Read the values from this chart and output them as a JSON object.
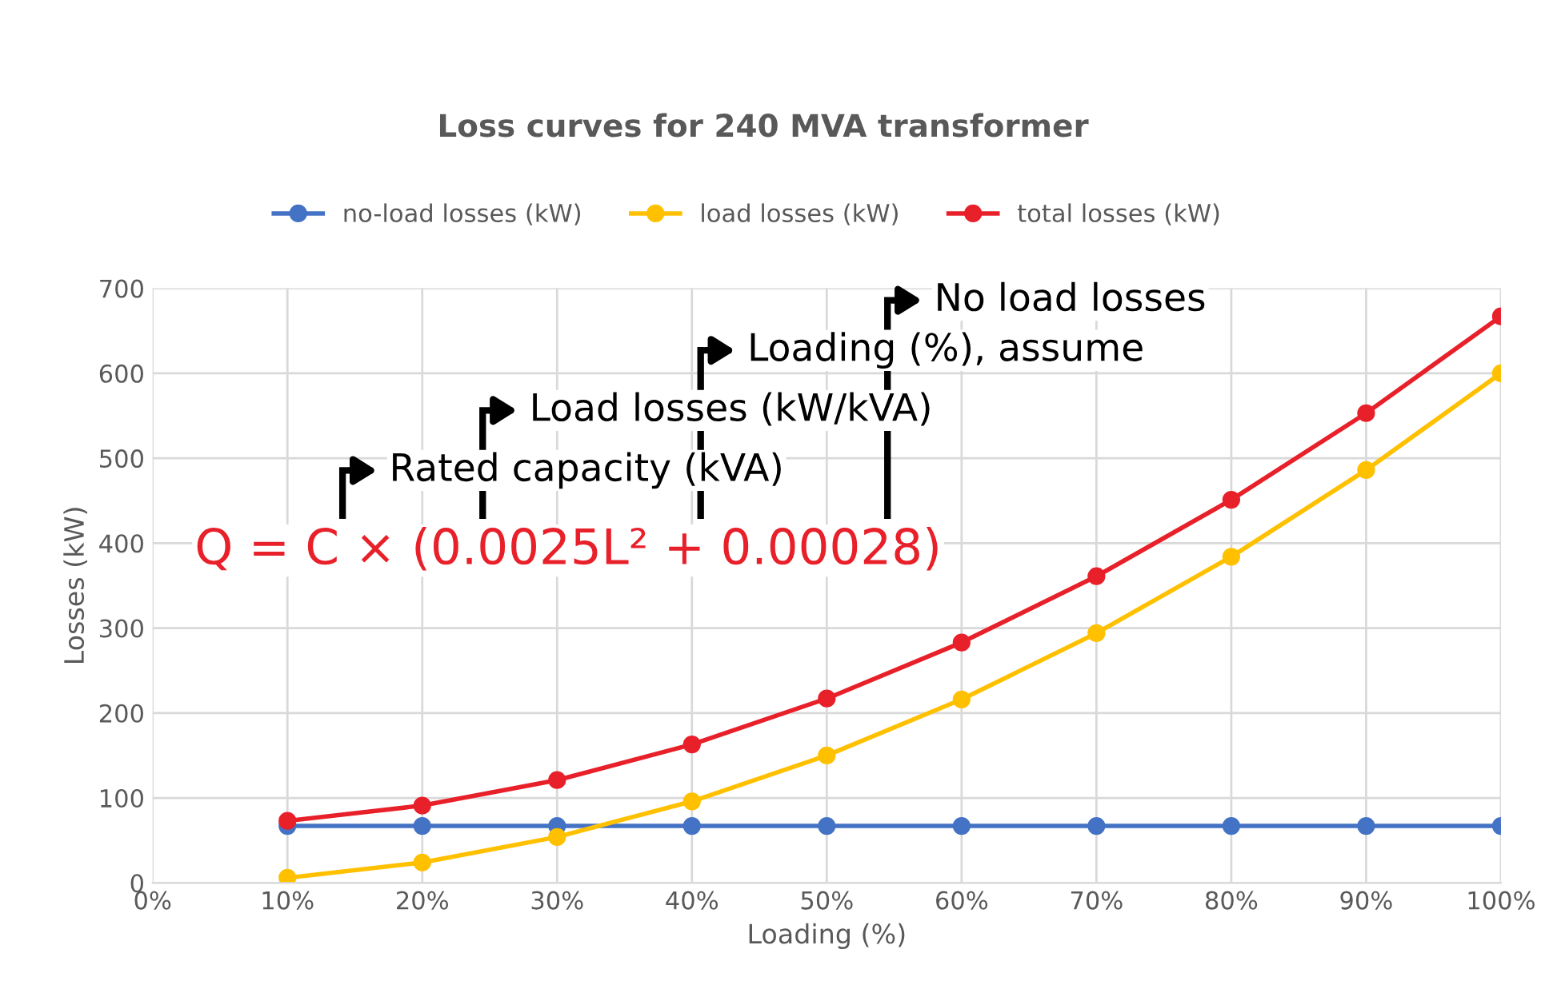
{
  "chart_data": {
    "type": "line",
    "title": "Loss curves for 240 MVA transformer",
    "xlabel": "Loading (%)",
    "ylabel": "Losses (kW)",
    "x": [
      10,
      20,
      30,
      40,
      50,
      60,
      70,
      80,
      90,
      100
    ],
    "series": [
      {
        "name": "no-load losses (kW)",
        "color": "#4472c4",
        "values": [
          67,
          67,
          67,
          67,
          67,
          67,
          67,
          67,
          67,
          67
        ]
      },
      {
        "name": "load losses (kW)",
        "color": "#ffc000",
        "values": [
          6,
          24,
          54,
          96,
          150,
          216,
          294,
          384,
          486,
          600
        ]
      },
      {
        "name": "total losses (kW)",
        "color": "#e8202a",
        "values": [
          73,
          91,
          121,
          163,
          217,
          283,
          361,
          451,
          553,
          667
        ]
      }
    ],
    "xlim": [
      0,
      100
    ],
    "xticks": [
      {
        "value": 0,
        "label": "0%"
      },
      {
        "value": 10,
        "label": "10%"
      },
      {
        "value": 20,
        "label": "20%"
      },
      {
        "value": 30,
        "label": "30%"
      },
      {
        "value": 40,
        "label": "40%"
      },
      {
        "value": 50,
        "label": "50%"
      },
      {
        "value": 60,
        "label": "60%"
      },
      {
        "value": 70,
        "label": "70%"
      },
      {
        "value": 80,
        "label": "80%"
      },
      {
        "value": 90,
        "label": "90%"
      },
      {
        "value": 100,
        "label": "100%"
      }
    ],
    "ylim": [
      0,
      700
    ],
    "yticks": [
      0,
      100,
      200,
      300,
      400,
      500,
      600,
      700
    ],
    "grid": true,
    "legend": "top",
    "marker": "circle",
    "line_style": "solid",
    "annotations": [
      "Q = C × (0.0025L² + 0.00028)",
      "Rated capacity (kVA)",
      "Load losses (kW/kVA)",
      "Loading (%), assume",
      "No load losses"
    ]
  }
}
